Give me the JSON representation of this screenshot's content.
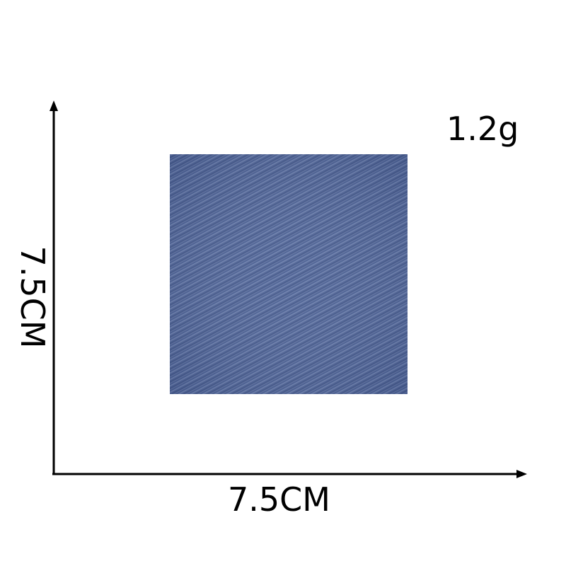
{
  "product": {
    "weight": "1.2g",
    "width_label": "7.5CM",
    "height_label": "7.5CM",
    "swatch_color": "#4a5f92",
    "swatch_color_dark": "#34477a",
    "swatch_color_light": "#7f92bd"
  }
}
